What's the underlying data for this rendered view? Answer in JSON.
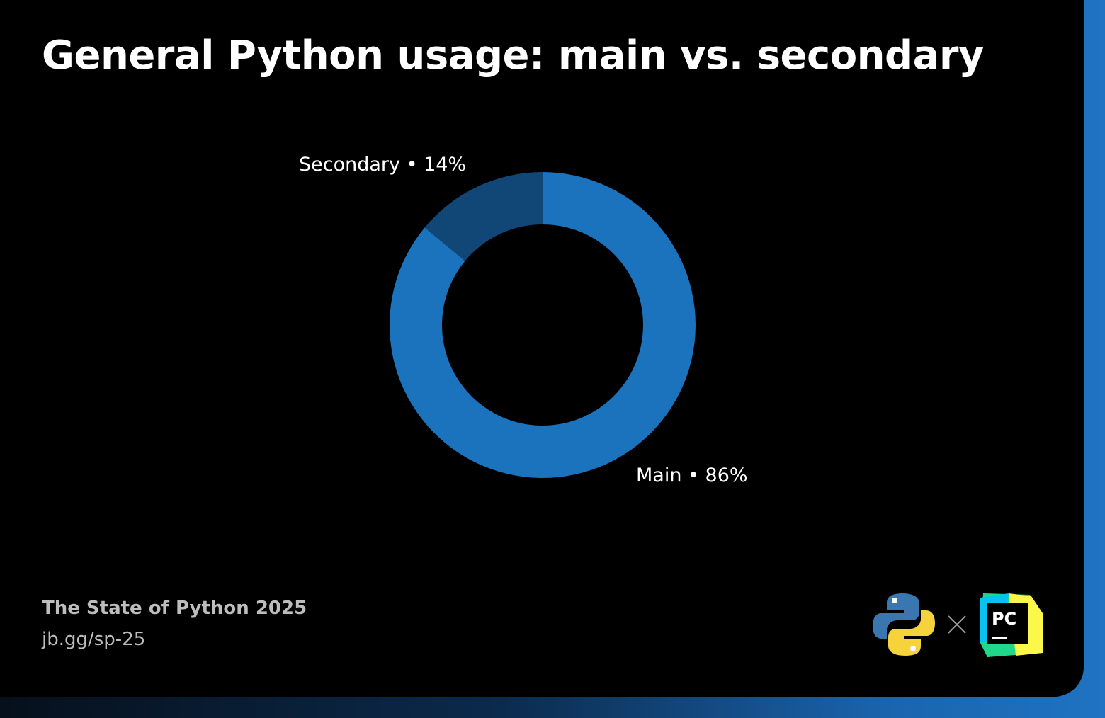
{
  "header": {
    "title": "General Python usage: main vs. secondary"
  },
  "chart_data": {
    "type": "pie",
    "variant": "donut",
    "title": "General Python usage: main vs. secondary",
    "slices": [
      {
        "name": "Main",
        "value": 86,
        "label": "Main • 86%",
        "color": "#1b72bd"
      },
      {
        "name": "Secondary",
        "value": 14,
        "label": "Secondary • 14%",
        "color": "#114776"
      }
    ],
    "legend": "none"
  },
  "footer": {
    "title": "The State of Python 2025",
    "link": "jb.gg/sp-25"
  },
  "logos": {
    "left": "python-logo",
    "separator": "×",
    "right": "pycharm-logo",
    "right_text": "PC"
  },
  "colors": {
    "background": "#000000",
    "accent": "#1b72bd",
    "accent_dark": "#114776",
    "text": "#ffffff",
    "muted_text": "#bdbdbd"
  }
}
